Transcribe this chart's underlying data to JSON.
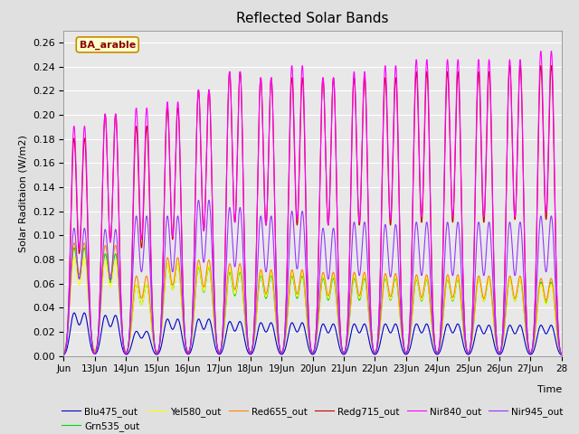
{
  "title": "Reflected Solar Bands",
  "xlabel": "Time",
  "ylabel": "Solar Raditaion (W/m2)",
  "ylim": [
    0.0,
    0.27
  ],
  "yticks": [
    0.0,
    0.02,
    0.04,
    0.06,
    0.08,
    0.1,
    0.12,
    0.14,
    0.16,
    0.18,
    0.2,
    0.22,
    0.24,
    0.26
  ],
  "xtick_labels": [
    "Jun",
    "13Jun",
    "14Jun",
    "15Jun",
    "16Jun",
    "17Jun",
    "18Jun",
    "19Jun",
    "20Jun",
    "21Jun",
    "22Jun",
    "23Jun",
    "24Jun",
    "25Jun",
    "26Jun",
    "27Jun",
    "28"
  ],
  "background_color": "#e0e0e0",
  "axes_facecolor": "#e8e8e8",
  "grid_color": "white",
  "series": {
    "Blu475_out": {
      "color": "#0000cc",
      "lw": 0.8
    },
    "Grn535_out": {
      "color": "#00dd00",
      "lw": 0.8
    },
    "Yel580_out": {
      "color": "#ffff00",
      "lw": 0.8
    },
    "Red655_out": {
      "color": "#ff8800",
      "lw": 0.8
    },
    "Redg715_out": {
      "color": "#cc0000",
      "lw": 0.8
    },
    "Nir840_out": {
      "color": "#ff00ff",
      "lw": 0.8
    },
    "Nir945_out": {
      "color": "#9933ff",
      "lw": 0.8
    }
  },
  "annotation_text": "BA_arable",
  "n_days": 16,
  "n_pts_per_day": 500,
  "peak_blu": [
    0.035,
    0.033,
    0.02,
    0.03,
    0.03,
    0.028,
    0.027,
    0.027,
    0.026,
    0.026,
    0.026,
    0.026,
    0.026,
    0.025,
    0.025,
    0.025
  ],
  "peak_grn": [
    0.088,
    0.083,
    0.058,
    0.075,
    0.072,
    0.068,
    0.065,
    0.065,
    0.063,
    0.063,
    0.063,
    0.062,
    0.062,
    0.062,
    0.062,
    0.06
  ],
  "peak_yel": [
    0.08,
    0.078,
    0.058,
    0.075,
    0.073,
    0.07,
    0.067,
    0.067,
    0.065,
    0.065,
    0.064,
    0.063,
    0.063,
    0.062,
    0.062,
    0.058
  ],
  "peak_red": [
    0.092,
    0.09,
    0.065,
    0.08,
    0.078,
    0.075,
    0.07,
    0.07,
    0.068,
    0.068,
    0.067,
    0.066,
    0.066,
    0.065,
    0.065,
    0.063
  ],
  "peak_redg": [
    0.18,
    0.2,
    0.19,
    0.205,
    0.22,
    0.235,
    0.23,
    0.23,
    0.23,
    0.23,
    0.23,
    0.235,
    0.235,
    0.235,
    0.24,
    0.24
  ],
  "peak_nir840": [
    0.19,
    0.2,
    0.205,
    0.21,
    0.22,
    0.235,
    0.23,
    0.24,
    0.23,
    0.235,
    0.24,
    0.245,
    0.245,
    0.245,
    0.245,
    0.252
  ],
  "peak_nir945": [
    0.105,
    0.104,
    0.115,
    0.115,
    0.128,
    0.122,
    0.115,
    0.119,
    0.105,
    0.11,
    0.108,
    0.11,
    0.11,
    0.11,
    0.11,
    0.115
  ]
}
